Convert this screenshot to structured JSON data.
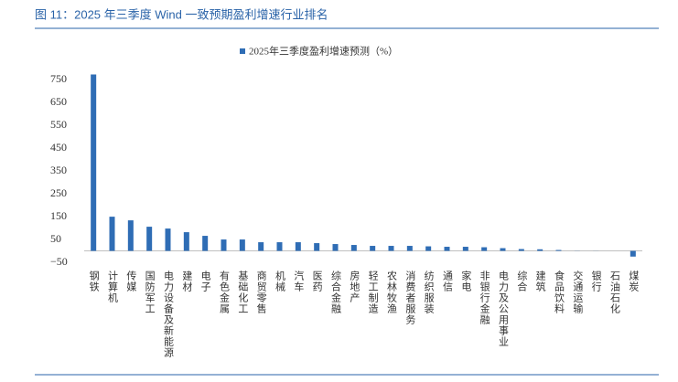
{
  "chart_data": {
    "type": "bar",
    "title": "图 11：2025 年三季度 Wind 一致预期盈利增速行业排名",
    "legend": "2025年三季度盈利增速预测（%）",
    "categories": [
      "钢铁",
      "计算机",
      "传媒",
      "国防军工",
      "电力设备及新能源",
      "建材",
      "电子",
      "有色金属",
      "基础化工",
      "商贸零售",
      "机械",
      "汽车",
      "医药",
      "综合金融",
      "房地产",
      "轻工制造",
      "农林牧渔",
      "消费者服务",
      "纺织服装",
      "通信",
      "家电",
      "非银行金融",
      "电力及公用事业",
      "综合",
      "建筑",
      "食品饮料",
      "交通运输",
      "银行",
      "石油石化",
      "煤炭"
    ],
    "values": [
      774,
      150,
      134,
      106,
      98,
      82,
      66,
      50,
      50,
      38,
      38,
      38,
      34,
      30,
      26,
      22,
      22,
      22,
      20,
      18,
      18,
      16,
      12,
      8,
      7,
      4,
      0.5,
      0.3,
      0,
      -25
    ],
    "color": "#2f6db5",
    "ylim": [
      -50,
      800
    ],
    "yticks": [
      {
        "value": -50,
        "label": "−50"
      },
      50,
      150,
      250,
      350,
      450,
      550,
      650,
      750
    ],
    "grid": false
  }
}
